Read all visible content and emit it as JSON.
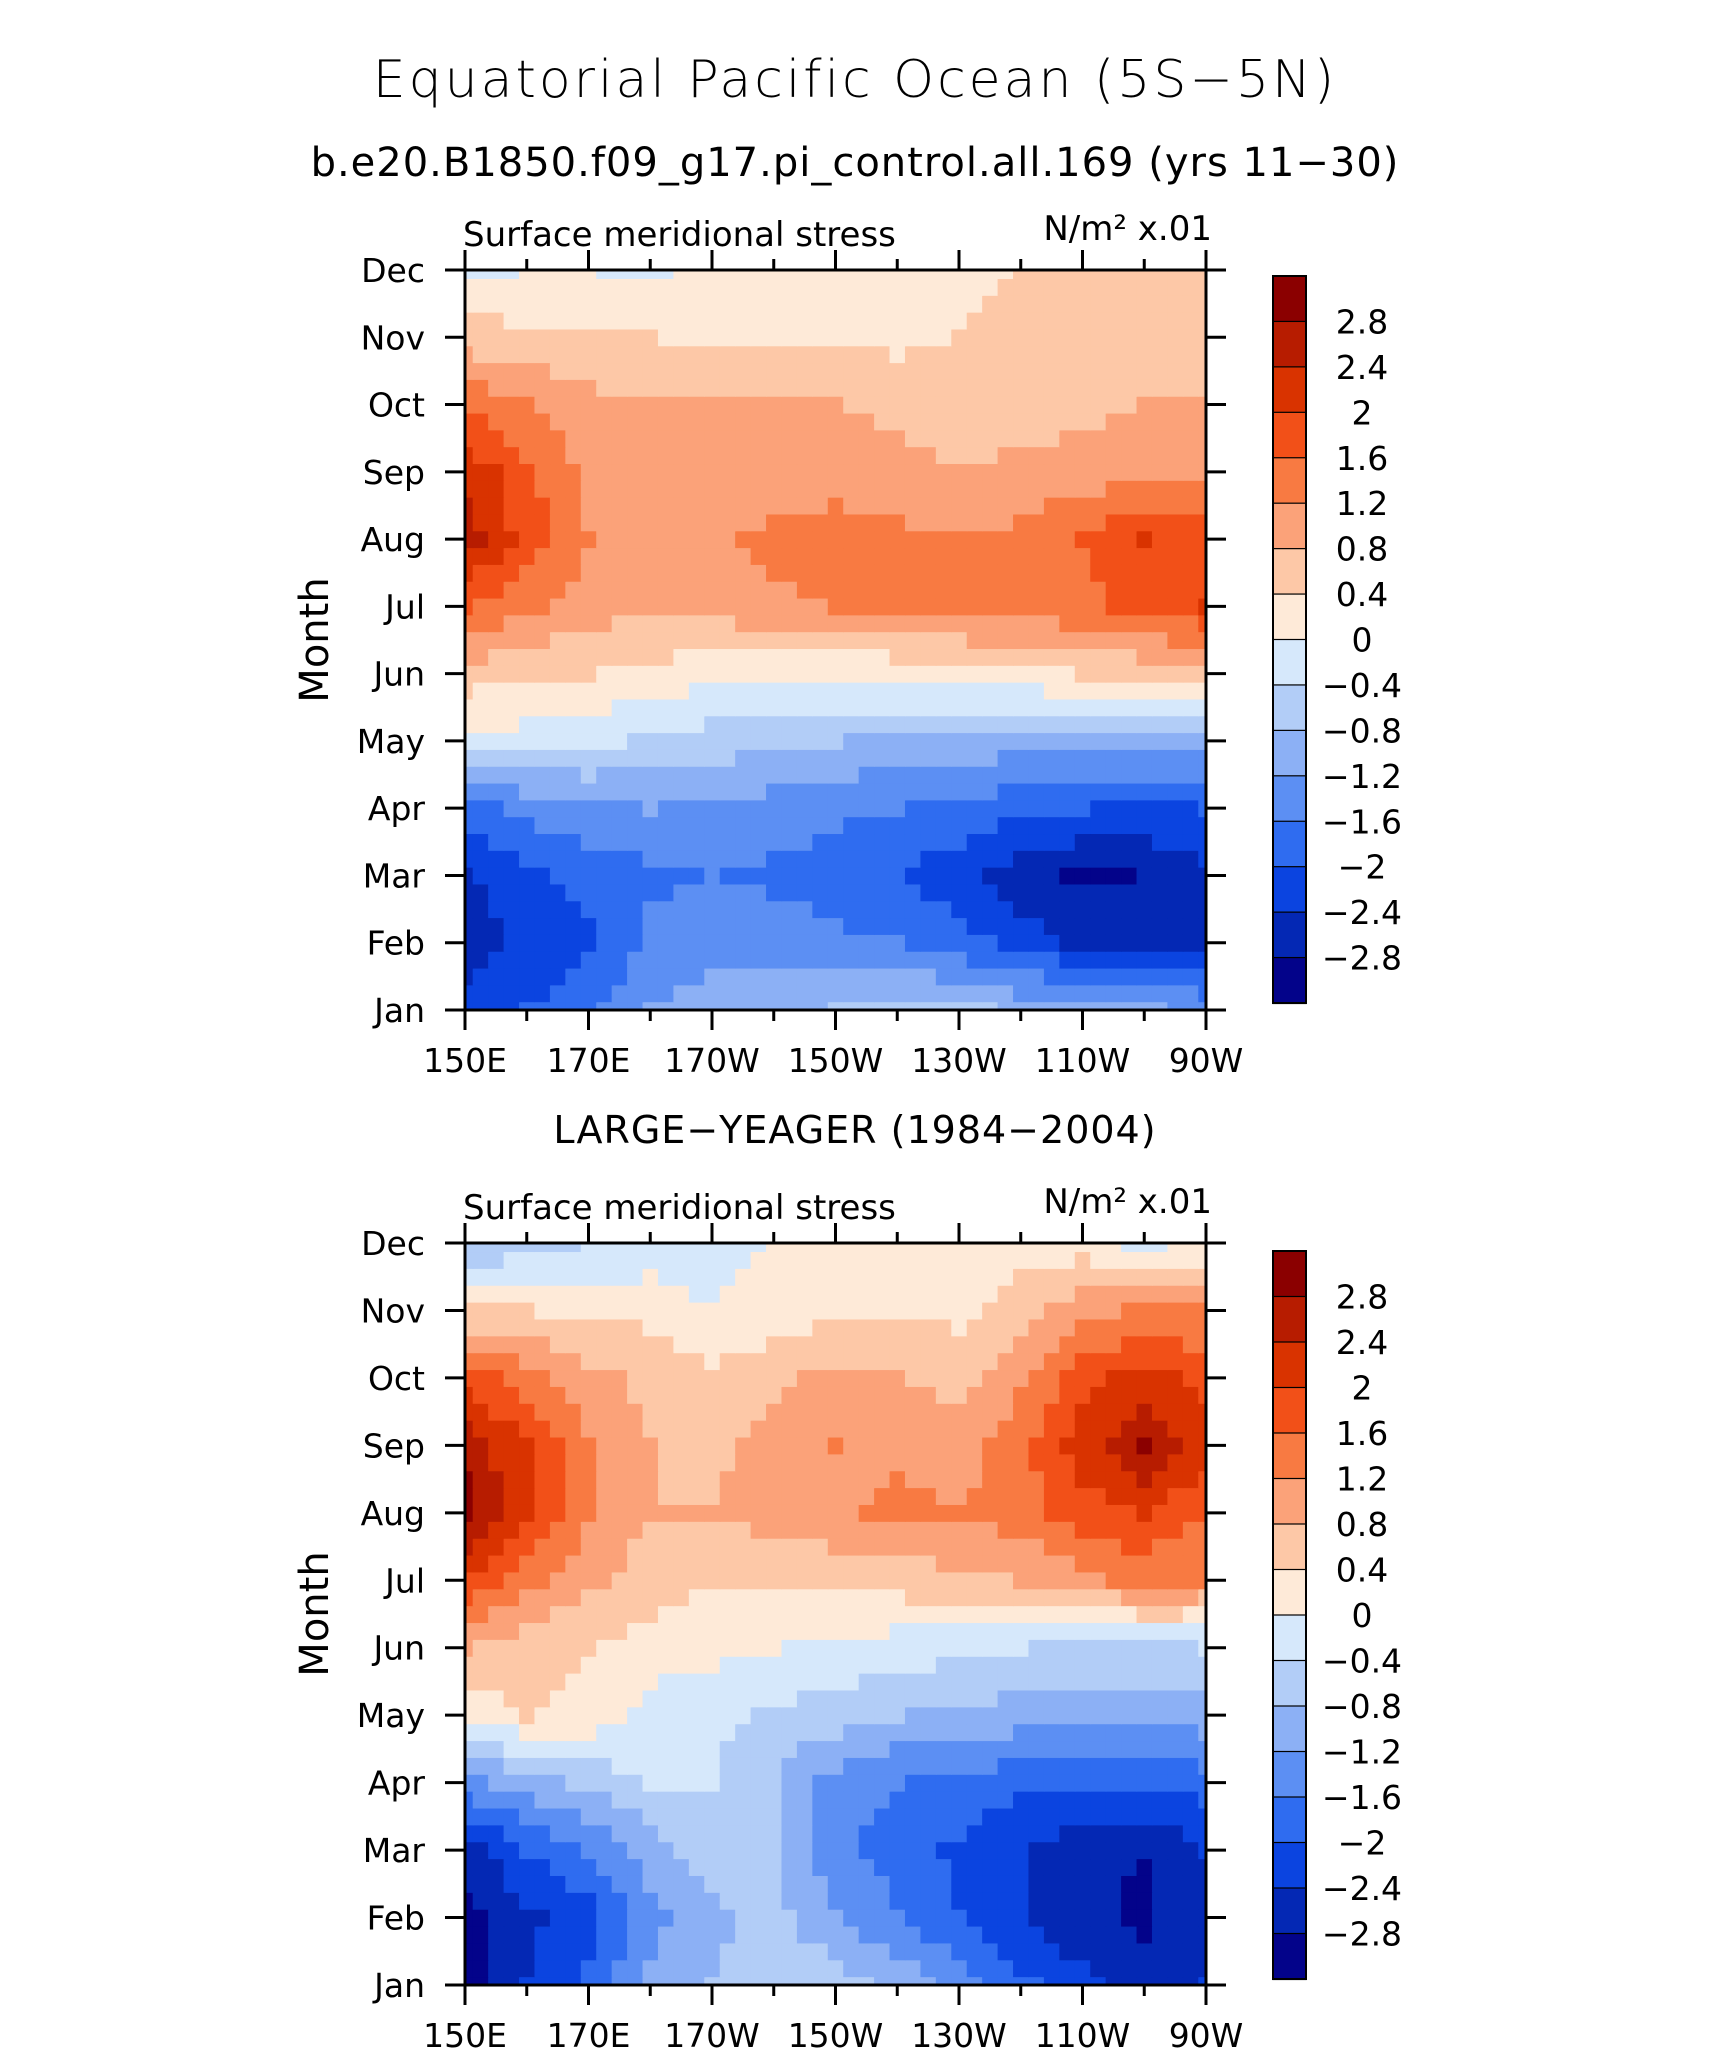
{
  "header": {
    "title": "Equatorial Pacific Ocean (5S−5N)",
    "subtitle": "b.e20.B1850.f09_g17.pi_control.all.169 (yrs 11−30)"
  },
  "panels": [
    {
      "title": "",
      "left_label": "Surface meridional stress",
      "units": "N/m² x.01"
    },
    {
      "title": "LARGE−YEAGER (1984−2004)",
      "left_label": "Surface meridional stress",
      "units": "N/m² x.01"
    }
  ],
  "axes": {
    "ylabel": "Month",
    "x_ticks": [
      "150E",
      "170E",
      "170W",
      "150W",
      "130W",
      "110W",
      "90W"
    ],
    "y_ticks": [
      "Jan",
      "Feb",
      "Mar",
      "Apr",
      "May",
      "Jun",
      "Jul",
      "Aug",
      "Sep",
      "Oct",
      "Nov",
      "Dec"
    ]
  },
  "colorbar": {
    "labels": [
      "2.8",
      "2.4",
      "2",
      "1.6",
      "1.2",
      "0.8",
      "0.4",
      "0",
      "−0.4",
      "−0.8",
      "−1.2",
      "−1.6",
      "−2",
      "−2.4",
      "−2.8"
    ],
    "colors": [
      "#8b0000",
      "#b71c00",
      "#d93300",
      "#f25018",
      "#f87a42",
      "#fba279",
      "#fdc8a7",
      "#feead8",
      "#d6e8fb",
      "#b2cdf7",
      "#8cb0f5",
      "#5c8ff3",
      "#2f6cf0",
      "#0b44e0",
      "#0428b4",
      "#03038a"
    ]
  },
  "chart_data": [
    {
      "type": "heatmap",
      "title": "",
      "subtitle": "b.e20.B1850.f09_g17.pi_control.all.169 (yrs 11−30)",
      "variable": "Surface meridional stress",
      "units": "N/m² x.01",
      "xlabel": "",
      "ylabel": "Month",
      "x": [
        150,
        160,
        170,
        180,
        190,
        200,
        210,
        220,
        230,
        240,
        250,
        260,
        270
      ],
      "x_labels": [
        "150E",
        "170E",
        "170W",
        "150W",
        "130W",
        "110W",
        "90W"
      ],
      "y": [
        "Jan",
        "Feb",
        "Mar",
        "Apr",
        "May",
        "Jun",
        "Jul",
        "Aug",
        "Sep",
        "Oct",
        "Nov",
        "Dec"
      ],
      "levels": [
        -2.8,
        -2.4,
        -2.0,
        -1.6,
        -1.2,
        -0.8,
        -0.4,
        0,
        0.4,
        0.8,
        1.2,
        1.6,
        2.0,
        2.4,
        2.8
      ],
      "values": [
        [
          -2.3,
          -2.0,
          -1.7,
          -1.2,
          -1.0,
          -0.9,
          -0.8,
          -0.6,
          -0.7,
          -0.9,
          -1.0,
          -1.1,
          -1.3
        ],
        [
          -2.6,
          -2.3,
          -2.1,
          -1.5,
          -1.3,
          -1.4,
          -1.5,
          -1.6,
          -1.8,
          -2.2,
          -2.5,
          -2.7,
          -2.6
        ],
        [
          -2.5,
          -2.1,
          -1.9,
          -1.7,
          -1.6,
          -1.7,
          -1.8,
          -2.0,
          -2.3,
          -2.6,
          -2.9,
          -2.8,
          -2.5
        ],
        [
          -1.8,
          -1.5,
          -1.3,
          -1.2,
          -1.3,
          -1.4,
          -1.5,
          -1.6,
          -1.7,
          -1.9,
          -2.0,
          -2.1,
          -2.0
        ],
        [
          -0.1,
          -0.2,
          -0.3,
          -0.5,
          -0.6,
          -0.7,
          -0.8,
          -0.9,
          -1.0,
          -1.0,
          -1.0,
          -1.1,
          -1.1
        ],
        [
          0.6,
          0.5,
          0.4,
          0.3,
          0.1,
          0.0,
          0.0,
          0.1,
          0.2,
          0.3,
          0.4,
          0.5,
          0.6
        ],
        [
          1.6,
          1.3,
          1.0,
          0.9,
          1.0,
          1.1,
          1.2,
          1.3,
          1.4,
          1.4,
          1.5,
          1.7,
          2.0
        ],
        [
          2.6,
          1.8,
          1.2,
          0.9,
          1.1,
          1.3,
          1.4,
          1.3,
          1.2,
          1.3,
          1.6,
          2.0,
          1.9
        ],
        [
          2.3,
          1.7,
          1.1,
          0.9,
          0.9,
          1.0,
          1.0,
          0.9,
          0.8,
          0.9,
          1.0,
          1.1,
          1.1
        ],
        [
          1.5,
          1.2,
          0.9,
          0.8,
          0.8,
          0.8,
          0.8,
          0.7,
          0.6,
          0.6,
          0.7,
          0.8,
          0.8
        ],
        [
          0.6,
          0.5,
          0.5,
          0.4,
          0.3,
          0.3,
          0.3,
          0.3,
          0.4,
          0.5,
          0.6,
          0.6,
          0.6
        ],
        [
          -0.1,
          0.0,
          0.0,
          -0.1,
          0.1,
          0.1,
          0.2,
          0.2,
          0.3,
          0.4,
          0.5,
          0.4,
          0.4
        ]
      ]
    },
    {
      "type": "heatmap",
      "title": "LARGE−YEAGER (1984−2004)",
      "variable": "Surface meridional stress",
      "units": "N/m² x.01",
      "xlabel": "",
      "ylabel": "Month",
      "x": [
        150,
        160,
        170,
        180,
        190,
        200,
        210,
        220,
        230,
        240,
        250,
        260,
        270
      ],
      "x_labels": [
        "150E",
        "170E",
        "170W",
        "150W",
        "130W",
        "110W",
        "90W"
      ],
      "y": [
        "Jan",
        "Feb",
        "Mar",
        "Apr",
        "May",
        "Jun",
        "Jul",
        "Aug",
        "Sep",
        "Oct",
        "Nov",
        "Dec"
      ],
      "levels": [
        -2.8,
        -2.4,
        -2.0,
        -1.6,
        -1.2,
        -0.8,
        -0.4,
        0,
        0.4,
        0.8,
        1.2,
        1.6,
        2.0,
        2.4,
        2.8
      ],
      "values": [
        [
          -3.0,
          -2.4,
          -1.9,
          -1.1,
          -0.8,
          -0.5,
          -0.6,
          -0.9,
          -1.4,
          -1.9,
          -2.3,
          -2.6,
          -2.4
        ],
        [
          -3.0,
          -2.5,
          -2.2,
          -1.3,
          -0.9,
          -0.7,
          -1.1,
          -1.6,
          -2.0,
          -2.4,
          -2.7,
          -2.9,
          -2.5
        ],
        [
          -2.6,
          -2.0,
          -1.6,
          -1.0,
          -0.6,
          -0.8,
          -1.5,
          -1.8,
          -2.1,
          -2.4,
          -2.7,
          -2.8,
          -2.4
        ],
        [
          -1.4,
          -1.0,
          -0.7,
          -0.4,
          -0.4,
          -0.8,
          -1.4,
          -1.6,
          -1.7,
          -1.9,
          -2.0,
          -2.0,
          -1.8
        ],
        [
          0.2,
          0.4,
          0.3,
          -0.2,
          -0.3,
          -0.5,
          -0.6,
          -0.8,
          -0.9,
          -1.0,
          -1.0,
          -1.1,
          -1.0
        ],
        [
          0.8,
          0.5,
          0.4,
          0.2,
          0.1,
          0.0,
          -0.1,
          -0.2,
          -0.3,
          -0.4,
          -0.5,
          -0.5,
          -0.4
        ],
        [
          1.9,
          1.4,
          0.9,
          0.6,
          0.4,
          0.4,
          0.5,
          0.6,
          0.7,
          0.8,
          1.1,
          1.3,
          1.2
        ],
        [
          3.0,
          2.0,
          1.2,
          0.8,
          0.8,
          1.0,
          1.1,
          1.3,
          1.2,
          1.4,
          1.8,
          2.0,
          1.6
        ],
        [
          2.7,
          2.0,
          1.2,
          0.8,
          0.7,
          1.0,
          1.2,
          1.1,
          1.0,
          1.5,
          2.2,
          2.8,
          2.2
        ],
        [
          1.8,
          1.4,
          0.9,
          0.7,
          0.5,
          0.7,
          0.9,
          0.8,
          0.7,
          1.1,
          1.8,
          2.2,
          1.8
        ],
        [
          0.4,
          0.4,
          0.3,
          0.3,
          0.0,
          0.2,
          0.3,
          0.3,
          0.3,
          0.6,
          1.0,
          1.3,
          1.2
        ],
        [
          -0.8,
          -0.6,
          -0.4,
          -0.3,
          -0.2,
          0.0,
          0.1,
          0.2,
          0.2,
          0.3,
          0.2,
          -0.1,
          0.1
        ]
      ]
    }
  ]
}
